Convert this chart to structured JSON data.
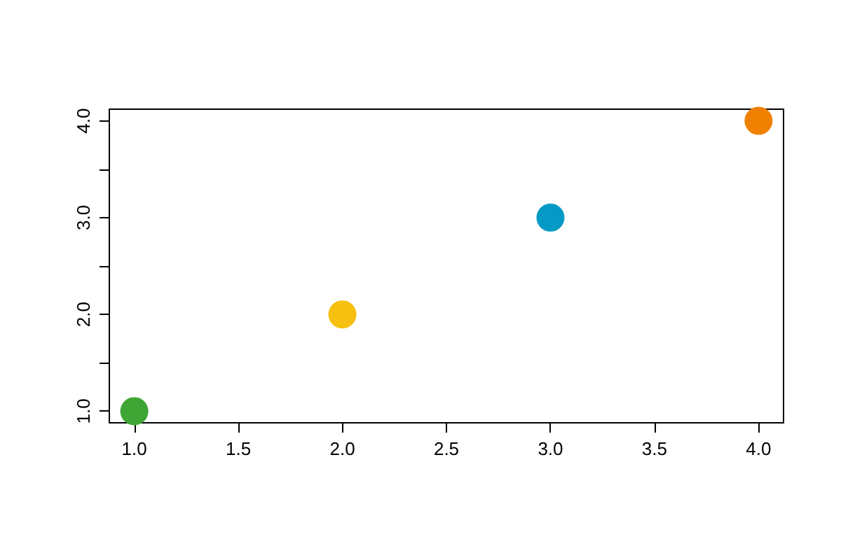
{
  "chart_data": {
    "type": "scatter",
    "x": [
      1,
      2,
      3,
      4
    ],
    "values": [
      1,
      2,
      3,
      4
    ],
    "colors": [
      "#3fa535",
      "#f5c00f",
      "#0599c5",
      "#f08000"
    ],
    "marker": "circle",
    "grid": false,
    "xlim": [
      0.88,
      4.12
    ],
    "ylim": [
      0.88,
      4.12
    ],
    "xticks": [
      {
        "value": 1,
        "label": "1.0"
      },
      {
        "value": 1.5,
        "label": "1.5"
      },
      {
        "value": 2,
        "label": "2.0"
      },
      {
        "value": 2.5,
        "label": "2.5"
      },
      {
        "value": 3,
        "label": "3.0"
      },
      {
        "value": 3.5,
        "label": "3.5"
      },
      {
        "value": 4,
        "label": "4.0"
      }
    ],
    "yticks": [
      {
        "value": 1,
        "label": "1.0"
      },
      {
        "value": 1.5,
        "label": null
      },
      {
        "value": 2,
        "label": "2.0"
      },
      {
        "value": 2.5,
        "label": null
      },
      {
        "value": 3,
        "label": "3.0"
      },
      {
        "value": 3.5,
        "label": null
      },
      {
        "value": 4,
        "label": "4.0"
      }
    ]
  }
}
